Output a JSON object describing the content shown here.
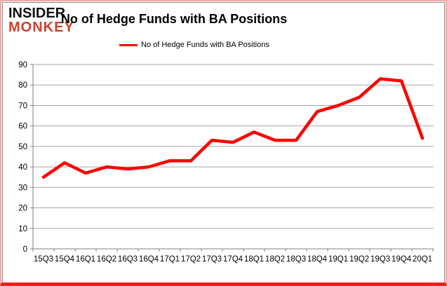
{
  "logo": {
    "line1": "INSIDER",
    "line2": "MONKEY"
  },
  "header": {
    "title": "No of Hedge Funds with BA Positions"
  },
  "legend": {
    "label": "No of Hedge Funds with BA Positions"
  },
  "colors": {
    "line": "#fe0000",
    "grid": "#a8a8a8",
    "axis": "#808080",
    "logo_red": "#d0402e",
    "border_outer": "#f0a9a4",
    "border_bottom": "#ff1a1a",
    "chart_border": "#8a8a8a"
  },
  "chart_data": {
    "type": "line",
    "title": "No of Hedge Funds with BA Positions",
    "categories": [
      "15Q3",
      "15Q4",
      "16Q1",
      "16Q2",
      "16Q3",
      "16Q4",
      "17Q1",
      "17Q2",
      "17Q3",
      "17Q4",
      "18Q1",
      "18Q2",
      "18Q3",
      "18Q4",
      "19Q1",
      "19Q2",
      "19Q3",
      "19Q4",
      "20Q1"
    ],
    "series": [
      {
        "name": "No of Hedge Funds with BA Positions",
        "color": "#fe0000",
        "values": [
          35,
          42,
          37,
          40,
          39,
          40,
          43,
          43,
          53,
          52,
          57,
          53,
          53,
          67,
          70,
          74,
          83,
          82,
          54
        ]
      }
    ],
    "xlabel": "",
    "ylabel": "",
    "ylim": [
      0,
      90
    ],
    "yticks": [
      0,
      10,
      20,
      30,
      40,
      50,
      60,
      70,
      80,
      90
    ],
    "grid": true,
    "legend_position": "top"
  }
}
